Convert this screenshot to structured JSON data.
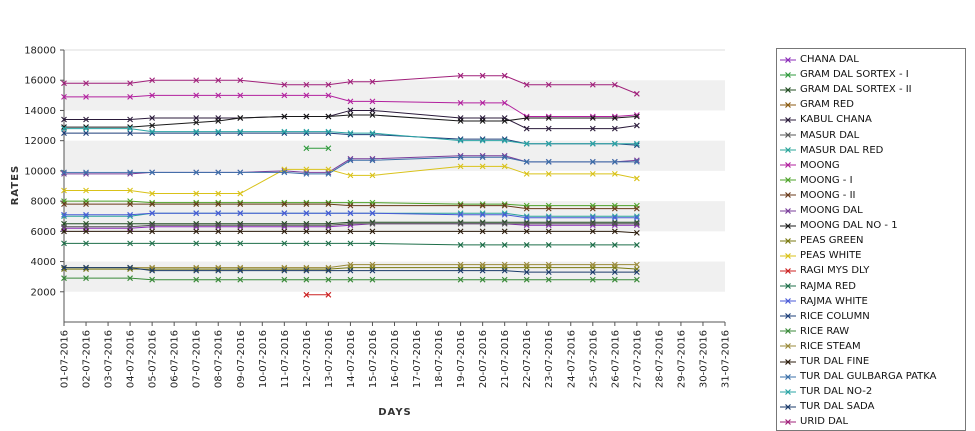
{
  "chart_data": {
    "type": "line",
    "xlabel": "DAYS",
    "ylabel": "RATES",
    "ylim": [
      0,
      18000
    ],
    "yticks": [
      2000,
      4000,
      6000,
      8000,
      10000,
      12000,
      14000,
      16000,
      18000
    ],
    "grid": "alternating horizontal bands",
    "legend_position": "right",
    "categories": [
      "01-07-2016",
      "02-07-2016",
      "03-07-2016",
      "04-07-2016",
      "05-07-2016",
      "06-07-2016",
      "07-07-2016",
      "08-07-2016",
      "09-07-2016",
      "10-07-2016",
      "11-07-2016",
      "12-07-2016",
      "13-07-2016",
      "14-07-2016",
      "15-07-2016",
      "16-07-2016",
      "17-07-2016",
      "18-07-2016",
      "19-07-2016",
      "20-07-2016",
      "21-07-2016",
      "22-07-2016",
      "23-07-2016",
      "24-07-2016",
      "25-07-2016",
      "26-07-2016",
      "27-07-2016",
      "28-07-2016",
      "29-07-2016",
      "30-07-2016",
      "31-07-2016"
    ],
    "series": [
      {
        "name": "CHANA DAL",
        "color": "#8b2bb8",
        "values": [
          6200,
          6200,
          null,
          6200,
          6300,
          null,
          6300,
          6300,
          6300,
          null,
          6300,
          6300,
          6300,
          6400,
          6500,
          null,
          null,
          null,
          6500,
          6500,
          6500,
          6400,
          6400,
          null,
          6400,
          6400,
          6400,
          null,
          null,
          null,
          null
        ]
      },
      {
        "name": "GRAM DAL SORTEX  - I",
        "color": "#2f9a3c",
        "values": [
          null,
          null,
          null,
          null,
          null,
          null,
          null,
          null,
          null,
          null,
          null,
          11500,
          11500,
          null,
          null,
          null,
          null,
          null,
          null,
          null,
          null,
          null,
          null,
          null,
          null,
          null,
          null,
          null,
          null,
          null,
          null
        ]
      },
      {
        "name": "GRAM DAL SORTEX - II",
        "color": "#214d22",
        "values": [
          6500,
          6500,
          null,
          6500,
          6500,
          null,
          6500,
          6500,
          6500,
          null,
          6500,
          6500,
          6500,
          6600,
          6600,
          null,
          null,
          null,
          6600,
          6600,
          6600,
          6600,
          6600,
          null,
          6600,
          6600,
          6600,
          null,
          null,
          null,
          null
        ]
      },
      {
        "name": "GRAM RED",
        "color": "#8b5a10",
        "values": [
          null,
          null,
          null,
          null,
          null,
          null,
          null,
          null,
          null,
          null,
          null,
          null,
          null,
          null,
          null,
          null,
          null,
          null,
          null,
          null,
          null,
          null,
          null,
          null,
          null,
          null,
          null,
          null,
          null,
          null,
          null
        ]
      },
      {
        "name": "KABUL CHANA",
        "color": "#2b1b3b",
        "values": [
          13400,
          13400,
          null,
          13400,
          13500,
          null,
          13500,
          13500,
          13500,
          null,
          13600,
          13600,
          13600,
          14000,
          14000,
          null,
          null,
          null,
          13500,
          13500,
          13500,
          12800,
          12800,
          null,
          12800,
          12800,
          13000,
          null,
          null,
          null,
          null
        ]
      },
      {
        "name": "MASUR DAL",
        "color": "#555555",
        "values": [
          6300,
          6300,
          null,
          6300,
          6400,
          null,
          6400,
          6400,
          6400,
          null,
          6400,
          6400,
          6400,
          6500,
          6500,
          null,
          null,
          null,
          6500,
          6500,
          6500,
          6500,
          6500,
          null,
          6500,
          6500,
          6500,
          null,
          null,
          null,
          null
        ]
      },
      {
        "name": "MASUR DAL RED",
        "color": "#2aa59a",
        "values": [
          7000,
          7000,
          null,
          7000,
          7200,
          null,
          7200,
          7200,
          7200,
          null,
          7200,
          7200,
          7200,
          7200,
          7200,
          null,
          null,
          null,
          7200,
          7200,
          7200,
          7000,
          7000,
          null,
          7000,
          7000,
          7000,
          null,
          null,
          null,
          null
        ]
      },
      {
        "name": "MOONG",
        "color": "#b2209e",
        "values": [
          14900,
          14900,
          null,
          14900,
          15000,
          null,
          15000,
          15000,
          15000,
          null,
          15000,
          15000,
          15000,
          14600,
          14600,
          null,
          null,
          null,
          14500,
          14500,
          14500,
          13600,
          13600,
          null,
          13600,
          13600,
          13700,
          null,
          null,
          null,
          null
        ]
      },
      {
        "name": "MOONG - I",
        "color": "#4ea32a",
        "values": [
          8000,
          8000,
          null,
          8000,
          7900,
          null,
          7900,
          7900,
          7900,
          null,
          7900,
          7900,
          7900,
          7900,
          7900,
          null,
          null,
          null,
          7800,
          7800,
          7800,
          7700,
          7700,
          null,
          7700,
          7700,
          7700,
          null,
          null,
          null,
          null
        ]
      },
      {
        "name": "MOONG - II",
        "color": "#6a3a1a",
        "values": [
          7800,
          7800,
          null,
          7800,
          7800,
          null,
          7800,
          7800,
          7800,
          null,
          7800,
          7800,
          7800,
          7700,
          7700,
          null,
          null,
          null,
          7700,
          7700,
          7700,
          7500,
          7500,
          null,
          7500,
          7500,
          7500,
          null,
          null,
          null,
          null
        ]
      },
      {
        "name": "MOONG DAL",
        "color": "#7a3d9a",
        "values": [
          9800,
          9800,
          null,
          9800,
          9900,
          null,
          9900,
          9900,
          9900,
          null,
          10000,
          9900,
          9900,
          10800,
          10800,
          null,
          null,
          null,
          11000,
          11000,
          11000,
          10600,
          10600,
          null,
          10600,
          10600,
          10700,
          null,
          null,
          null,
          null
        ]
      },
      {
        "name": "MOONG DAL NO - 1",
        "color": "#1a1a1a",
        "values": [
          12900,
          12900,
          null,
          12900,
          13000,
          null,
          13200,
          13300,
          13500,
          null,
          13600,
          13600,
          13600,
          13700,
          13700,
          null,
          null,
          null,
          13300,
          13300,
          13300,
          13500,
          13500,
          null,
          13500,
          13500,
          13600,
          null,
          null,
          null,
          null
        ]
      },
      {
        "name": "PEAS GREEN",
        "color": "#7a7a10",
        "values": [
          3500,
          3500,
          null,
          3500,
          3500,
          null,
          3500,
          3500,
          3500,
          null,
          3500,
          3500,
          3500,
          3600,
          3600,
          null,
          null,
          null,
          3600,
          3600,
          3600,
          3600,
          3600,
          null,
          3600,
          3600,
          3500,
          null,
          null,
          null,
          null
        ]
      },
      {
        "name": "PEAS WHITE",
        "color": "#d9c219",
        "values": [
          8700,
          8700,
          null,
          8700,
          8500,
          null,
          8500,
          8500,
          8500,
          null,
          10100,
          10100,
          10100,
          9700,
          9700,
          null,
          null,
          null,
          10300,
          10300,
          10300,
          9800,
          9800,
          null,
          9800,
          9800,
          9500,
          null,
          null,
          null,
          null
        ]
      },
      {
        "name": "RAGI MYS DLY",
        "color": "#cc2222",
        "values": [
          null,
          null,
          null,
          null,
          null,
          null,
          null,
          null,
          null,
          null,
          null,
          1800,
          1800,
          null,
          null,
          null,
          null,
          null,
          null,
          null,
          null,
          null,
          null,
          null,
          null,
          null,
          null,
          null,
          null,
          null,
          null
        ]
      },
      {
        "name": "RAJMA RED",
        "color": "#1f6f4a",
        "values": [
          5200,
          5200,
          null,
          5200,
          5200,
          null,
          5200,
          5200,
          5200,
          null,
          5200,
          5200,
          5200,
          5200,
          5200,
          null,
          null,
          null,
          5100,
          5100,
          5100,
          5100,
          5100,
          null,
          5100,
          5100,
          5100,
          null,
          null,
          null,
          null
        ]
      },
      {
        "name": "RAJMA WHITE",
        "color": "#4a5ad8",
        "values": [
          7100,
          7100,
          null,
          7100,
          7200,
          null,
          7200,
          7200,
          7200,
          null,
          7200,
          7200,
          7200,
          7200,
          7200,
          null,
          null,
          null,
          7100,
          7100,
          7100,
          6900,
          6900,
          null,
          6900,
          6900,
          6900,
          null,
          null,
          null,
          null
        ]
      },
      {
        "name": "RICE COLUMN",
        "color": "#1d3f7a",
        "values": [
          12500,
          12500,
          null,
          12500,
          12500,
          null,
          12500,
          12500,
          12500,
          null,
          12500,
          12500,
          12500,
          12400,
          12400,
          null,
          null,
          null,
          12100,
          12100,
          12100,
          11800,
          11800,
          null,
          11800,
          11800,
          11700,
          null,
          null,
          null,
          null
        ]
      },
      {
        "name": "RICE RAW",
        "color": "#3a8a3a",
        "values": [
          2900,
          2900,
          null,
          2900,
          2800,
          null,
          2800,
          2800,
          2800,
          null,
          2800,
          2800,
          2800,
          2800,
          2800,
          null,
          null,
          null,
          2800,
          2800,
          2800,
          2800,
          2800,
          null,
          2800,
          2800,
          2800,
          null,
          null,
          null,
          null
        ]
      },
      {
        "name": "RICE STEAM",
        "color": "#9a8a3a",
        "values": [
          3600,
          3600,
          null,
          3600,
          3600,
          null,
          3600,
          3600,
          3600,
          null,
          3600,
          3600,
          3600,
          3800,
          3800,
          null,
          null,
          null,
          3800,
          3800,
          3800,
          3800,
          3800,
          null,
          3800,
          3800,
          3800,
          null,
          null,
          null,
          null
        ]
      },
      {
        "name": "TUR DAL FINE",
        "color": "#2a1a0a",
        "values": [
          6000,
          6000,
          null,
          6000,
          6000,
          null,
          6000,
          6000,
          6000,
          null,
          6000,
          6000,
          6000,
          6000,
          6000,
          null,
          null,
          null,
          6000,
          6000,
          6000,
          6000,
          6000,
          null,
          6000,
          6000,
          5900,
          null,
          null,
          null,
          null
        ]
      },
      {
        "name": "TUR DAL GULBARGA PATKA",
        "color": "#3a6fa8",
        "values": [
          9900,
          9900,
          null,
          9900,
          9900,
          null,
          9900,
          9900,
          9900,
          null,
          9900,
          9800,
          9800,
          10700,
          10700,
          null,
          null,
          null,
          10900,
          10900,
          10900,
          10600,
          10600,
          null,
          10600,
          10600,
          10600,
          null,
          null,
          null,
          null
        ]
      },
      {
        "name": "TUR DAL NO-2",
        "color": "#2aa5a5",
        "values": [
          12800,
          12800,
          null,
          12800,
          12600,
          null,
          12600,
          12600,
          12600,
          null,
          12600,
          12600,
          12600,
          12500,
          12500,
          null,
          null,
          null,
          12000,
          12000,
          12000,
          11800,
          11800,
          null,
          11800,
          11800,
          11800,
          null,
          null,
          null,
          null
        ]
      },
      {
        "name": "TUR DAL SADA",
        "color": "#1a3a6a",
        "values": [
          3600,
          3600,
          null,
          3600,
          3400,
          null,
          3400,
          3400,
          3400,
          null,
          3400,
          3400,
          3400,
          3400,
          3400,
          null,
          null,
          null,
          3400,
          3400,
          3400,
          3300,
          3300,
          null,
          3300,
          3300,
          3300,
          null,
          null,
          null,
          null
        ]
      },
      {
        "name": "URID DAL",
        "color": "#a0207a",
        "values": [
          15800,
          15800,
          null,
          15800,
          16000,
          null,
          16000,
          16000,
          16000,
          null,
          15700,
          15700,
          15700,
          15900,
          15900,
          null,
          null,
          null,
          16300,
          16300,
          16300,
          15700,
          15700,
          null,
          15700,
          15700,
          15100,
          null,
          null,
          null,
          null
        ]
      }
    ]
  }
}
